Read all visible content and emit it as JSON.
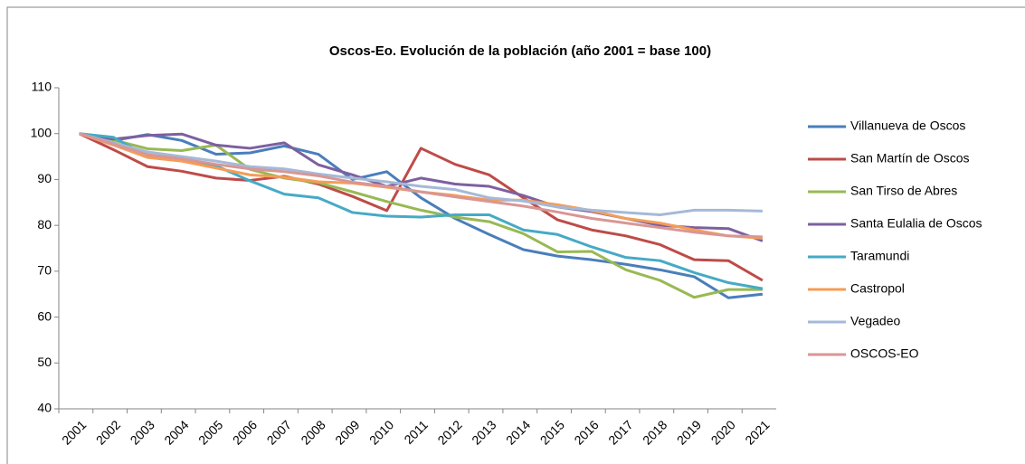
{
  "chart_data": {
    "type": "line",
    "title": "Oscos-Eo. Evolución de la población (año 2001 = base 100)",
    "categories": [
      "2001",
      "2002",
      "2003",
      "2004",
      "2005",
      "2006",
      "2007",
      "2008",
      "2009",
      "2010",
      "2011",
      "2012",
      "2013",
      "2014",
      "2015",
      "2016",
      "2017",
      "2018",
      "2019",
      "2020",
      "2021"
    ],
    "ylim": [
      40,
      110
    ],
    "yticks": [
      40,
      50,
      60,
      70,
      80,
      90,
      100,
      110
    ],
    "grid": false,
    "legend": "right",
    "series": [
      {
        "name": "Villanueva de Oscos",
        "color": "#4a7ebb",
        "values": [
          100,
          98.5,
          99.8,
          98.5,
          95.5,
          95.8,
          97.3,
          95.5,
          90,
          91.7,
          86,
          81.5,
          78,
          74.7,
          73.3,
          72.5,
          71.5,
          70.3,
          68.8,
          64.2,
          65
        ]
      },
      {
        "name": "San Martín de Oscos",
        "color": "#be4b48",
        "values": [
          100,
          96.5,
          92.8,
          91.8,
          90.3,
          89.8,
          90.7,
          89,
          86.3,
          83.2,
          96.8,
          93.3,
          91,
          86,
          81.2,
          79,
          77.7,
          75.8,
          72.5,
          72.3,
          68
        ]
      },
      {
        "name": "San Tirso de Abres",
        "color": "#98b954",
        "values": [
          100,
          98.6,
          96.7,
          96.3,
          97.5,
          92.2,
          90.3,
          89.3,
          87.3,
          85.2,
          83.3,
          81.8,
          80.8,
          78.2,
          74.2,
          74.3,
          70.3,
          68,
          64.3,
          66,
          66
        ]
      },
      {
        "name": "Santa Eulalia de Oscos",
        "color": "#7d60a0",
        "values": [
          100,
          98.8,
          99.6,
          99.9,
          97.5,
          96.8,
          98,
          93.2,
          91,
          88.5,
          90.3,
          89,
          88.5,
          86.5,
          84,
          83,
          81.5,
          80,
          79.5,
          79.3,
          76.6
        ]
      },
      {
        "name": "Taramundi",
        "color": "#46aac5",
        "values": [
          100,
          99.2,
          95,
          94.5,
          93,
          89.7,
          86.8,
          86,
          82.8,
          82,
          81.8,
          82.3,
          82.3,
          79,
          78,
          75.3,
          73,
          72.3,
          69.7,
          67.5,
          66.2
        ]
      },
      {
        "name": "Castropol",
        "color": "#f59d56",
        "values": [
          100,
          97.5,
          94.8,
          94,
          92.5,
          91,
          90.5,
          89.5,
          89.2,
          88.3,
          87.3,
          86.5,
          85.5,
          85.5,
          84.5,
          83.2,
          81.5,
          80.5,
          79,
          77.7,
          77.2
        ]
      },
      {
        "name": "Vegadeo",
        "color": "#a5b9d8",
        "values": [
          100,
          98,
          96,
          95,
          94,
          92.8,
          92.3,
          91.2,
          90.3,
          89.5,
          88.5,
          87.8,
          86,
          85.3,
          84,
          83.3,
          82.8,
          82.3,
          83.3,
          83.3,
          83.1
        ]
      },
      {
        "name": "OSCOS-EO",
        "color": "#d99694",
        "values": [
          100,
          97.7,
          95.4,
          94.5,
          93.3,
          92.3,
          91.7,
          90.8,
          89.4,
          88.5,
          87.3,
          86.2,
          85.2,
          84.2,
          82.9,
          81.5,
          80.5,
          79.5,
          78.5,
          77.7,
          77.5
        ]
      }
    ]
  }
}
